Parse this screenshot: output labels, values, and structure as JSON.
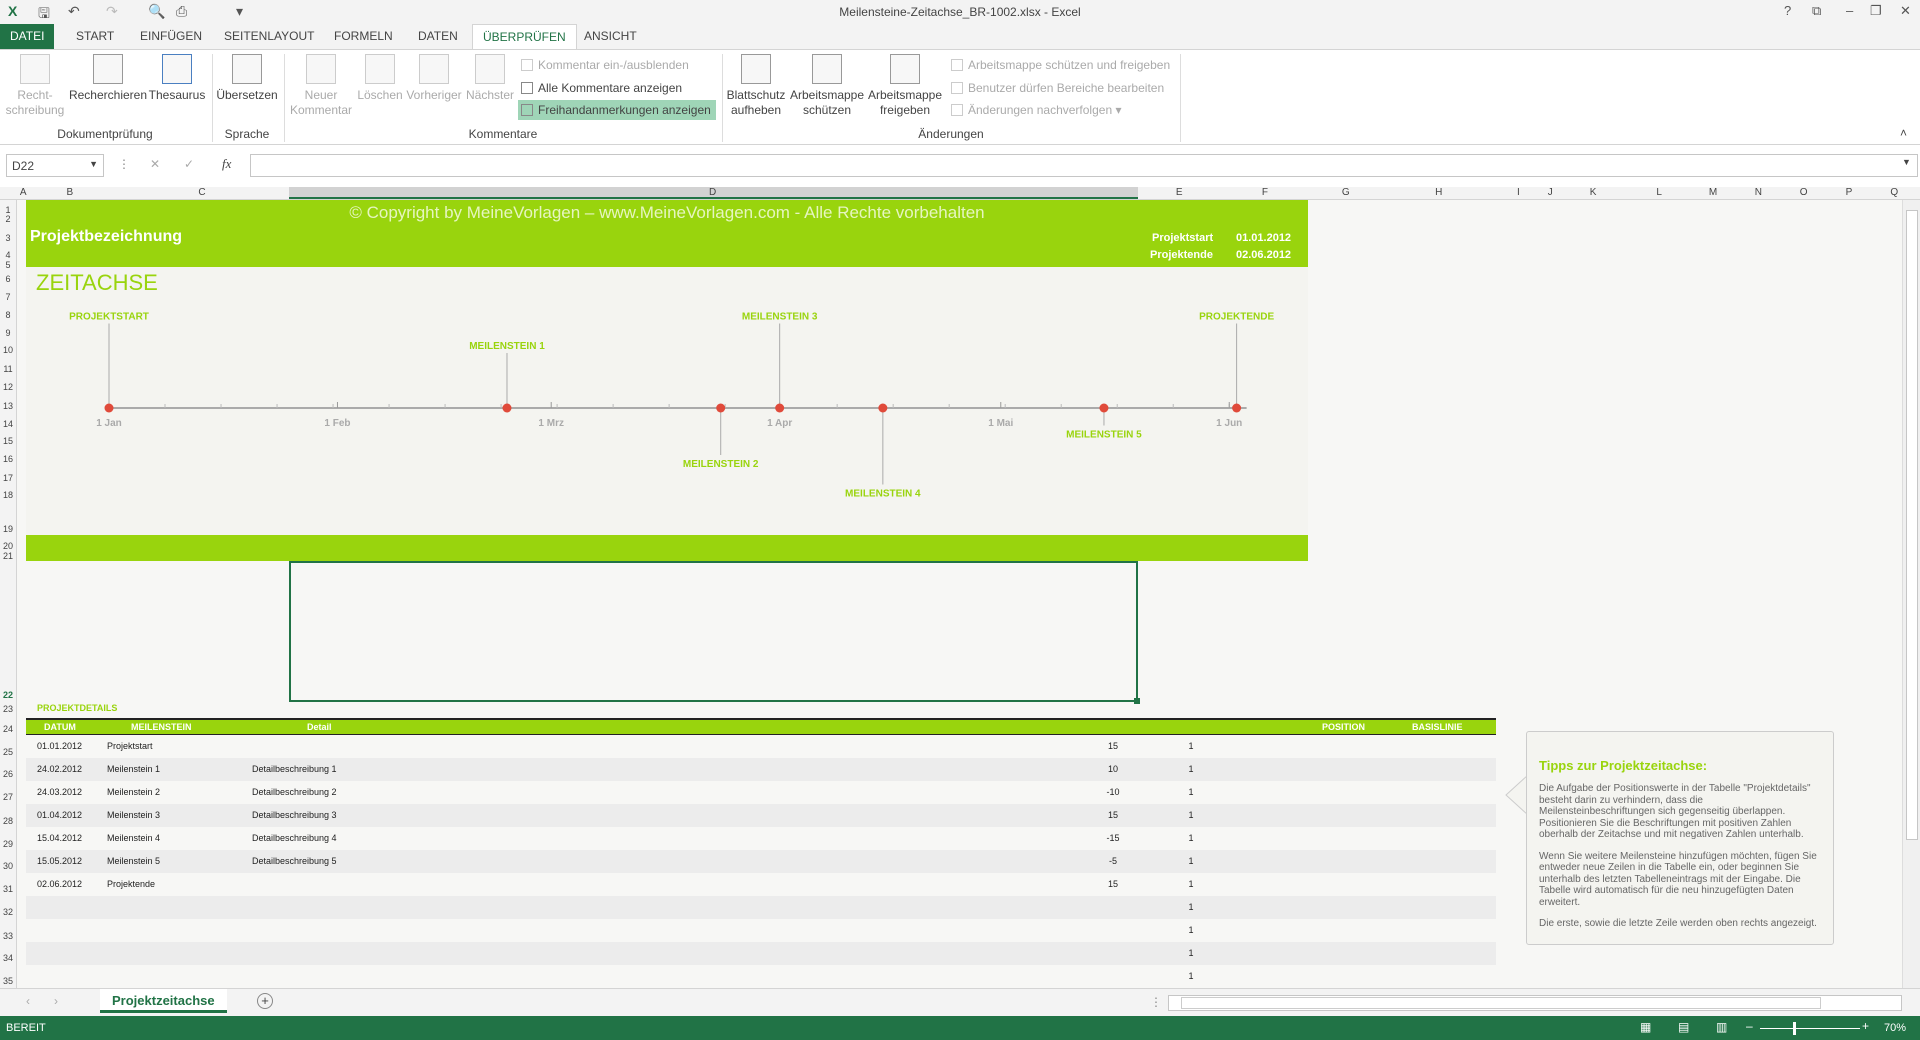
{
  "window": {
    "title": "Meilensteine-Zeitachse_BR-1002.xlsx - Excel",
    "help": "?",
    "restore": "⧉",
    "minimize": "–",
    "maximize": "❐",
    "close": "✕"
  },
  "tabs": [
    "DATEI",
    "START",
    "EINFÜGEN",
    "SEITENLAYOUT",
    "FORMELN",
    "DATEN",
    "ÜBERPRÜFEN",
    "ANSICHT"
  ],
  "active_tab": "ÜBERPRÜFEN",
  "ribbon": {
    "groups": {
      "dokumentpruefung": "Dokumentprüfung",
      "sprache": "Sprache",
      "kommentare": "Kommentare",
      "aenderungen": "Änderungen"
    },
    "buttons": {
      "rechtschreibung": "Recht-\nschreibung",
      "recherchieren": "Recherchieren",
      "thesaurus": "Thesaurus",
      "uebersetzen": "Übersetzen",
      "neuer_kommentar": "Neuer\nKommentar",
      "loeschen": "Löschen",
      "vorheriger": "Vorheriger",
      "naechster": "Nächster",
      "kommentar_einaus": "Kommentar ein-/ausblenden",
      "alle_kommentare": "Alle Kommentare anzeigen",
      "freihand": "Freihandanmerkungen anzeigen",
      "blattschutz": "Blattschutz\naufheben",
      "mappe_schuetzen": "Arbeitsmappe\nschützen",
      "mappe_freigeben": "Arbeitsmappe\nfreigeben",
      "schuetzen_freigeben": "Arbeitsmappe schützen und freigeben",
      "benutzer_bereiche": "Benutzer dürfen Bereiche bearbeiten",
      "aenderungen_nachverfolgen": "Änderungen nachverfolgen ▾"
    }
  },
  "formula_bar": {
    "name_box": "D22",
    "value": "",
    "cancel": "✕",
    "enter": "✓",
    "fx": "fx"
  },
  "columns": [
    "A",
    "B",
    "C",
    "D",
    "E",
    "F",
    "G",
    "H",
    "I",
    "J",
    "K",
    "L",
    "M",
    "N",
    "O",
    "P",
    "Q"
  ],
  "rows": [
    "1",
    "2",
    "3",
    "4",
    "5",
    "6",
    "7",
    "8",
    "9",
    "10",
    "11",
    "12",
    "13",
    "14",
    "15",
    "16",
    "17",
    "18",
    "19",
    "20",
    "21",
    "22",
    "23",
    "24",
    "25",
    "26",
    "27",
    "28",
    "29",
    "30",
    "31",
    "32",
    "33",
    "34",
    "35"
  ],
  "header": {
    "copyright": "© Copyright by MeineVorlagen – www.MeineVorlagen.com - Alle Rechte vorbehalten",
    "project_name": "Projektbezeichnung",
    "start_label": "Projektstart",
    "start_value": "01.01.2012",
    "end_label": "Projektende",
    "end_value": "02.06.2012"
  },
  "timeline_title": "ZEITACHSE",
  "chart_data": {
    "type": "timeline",
    "x_range": [
      "2012-01-01",
      "2012-06-02"
    ],
    "ticks": [
      {
        "date": "2012-01-01",
        "label": "1 Jan"
      },
      {
        "date": "2012-02-01",
        "label": "1 Feb"
      },
      {
        "date": "2012-03-01",
        "label": "1 Mrz"
      },
      {
        "date": "2012-04-01",
        "label": "1 Apr"
      },
      {
        "date": "2012-05-01",
        "label": "1 Mai"
      },
      {
        "date": "2012-06-01",
        "label": "1 Jun"
      }
    ],
    "points": [
      {
        "date": "2012-01-01",
        "label": "PROJEKTSTART",
        "position": 15
      },
      {
        "date": "2012-02-24",
        "label": "MEILENSTEIN 1",
        "position": 10
      },
      {
        "date": "2012-03-24",
        "label": "MEILENSTEIN 2",
        "position": -10
      },
      {
        "date": "2012-04-01",
        "label": "MEILENSTEIN 3",
        "position": 15
      },
      {
        "date": "2012-04-15",
        "label": "MEILENSTEIN 4",
        "position": -15
      },
      {
        "date": "2012-05-15",
        "label": "MEILENSTEIN 5",
        "position": -5
      },
      {
        "date": "2012-06-02",
        "label": "PROJEKTENDE",
        "position": 15
      }
    ],
    "colors": {
      "marker": "#e04a3a",
      "label": "#99d40d",
      "axis": "#aaaaaa"
    }
  },
  "details": {
    "title": "PROJEKTDETAILS",
    "headers": [
      "DATUM",
      "MEILENSTEIN",
      "Detail",
      "POSITION",
      "BASISLINIE"
    ],
    "rows": [
      [
        "01.01.2012",
        "Projektstart",
        "",
        "15",
        "1"
      ],
      [
        "24.02.2012",
        "Meilenstein 1",
        "Detailbeschreibung 1",
        "10",
        "1"
      ],
      [
        "24.03.2012",
        "Meilenstein 2",
        "Detailbeschreibung 2",
        "-10",
        "1"
      ],
      [
        "01.04.2012",
        "Meilenstein 3",
        "Detailbeschreibung 3",
        "15",
        "1"
      ],
      [
        "15.04.2012",
        "Meilenstein 4",
        "Detailbeschreibung 4",
        "-15",
        "1"
      ],
      [
        "15.05.2012",
        "Meilenstein 5",
        "Detailbeschreibung 5",
        "-5",
        "1"
      ],
      [
        "02.06.2012",
        "Projektende",
        "",
        "15",
        "1"
      ],
      [
        "",
        "",
        "",
        "",
        "1"
      ],
      [
        "",
        "",
        "",
        "",
        "1"
      ],
      [
        "",
        "",
        "",
        "",
        "1"
      ],
      [
        "",
        "",
        "",
        "",
        "1"
      ]
    ]
  },
  "tips": {
    "title": "Tipps zur Projektzeitachse:",
    "paragraphs": [
      "Die Aufgabe der Positionswerte in der Tabelle \"Projektdetails\" besteht darin zu verhindern, dass die Meilensteinbeschriftungen sich gegenseitig überlappen. Positionieren Sie die Beschriftungen mit positiven Zahlen oberhalb der Zeitachse und mit negativen Zahlen unterhalb.",
      "Wenn Sie weitere Meilensteine hinzufügen möchten, fügen Sie entweder neue Zeilen in die Tabelle ein, oder beginnen Sie unterhalb des letzten Tabelleneintrags mit der Eingabe. Die Tabelle wird automatisch für die neu hinzugefügten Daten erweitert.",
      "Die erste, sowie die letzte Zeile werden oben rechts angezeigt."
    ]
  },
  "sheet_tabs": {
    "active": "Projektzeitachse",
    "add": "+"
  },
  "status": {
    "text": "BEREIT",
    "zoom": "70%",
    "zoom_level": 70
  },
  "colors": {
    "accent": "#99d40d",
    "excel_green": "#217346"
  }
}
